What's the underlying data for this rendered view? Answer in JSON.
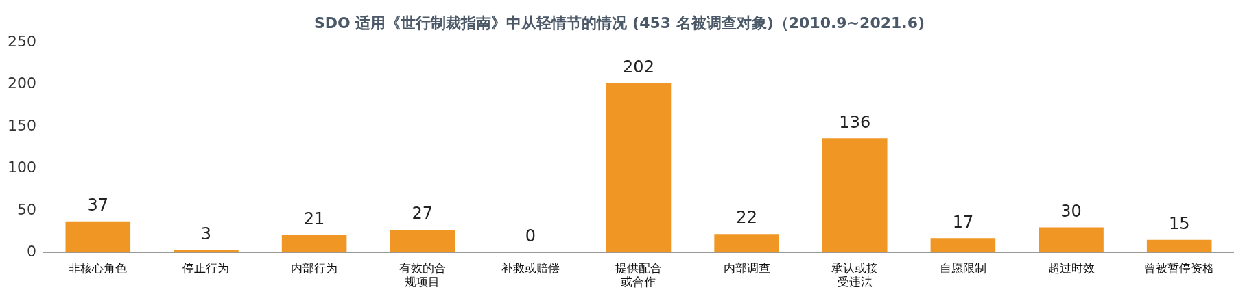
{
  "chart_data": {
    "type": "bar",
    "title": "SDO 适用《世行制裁指南》中从轻情节的情况 (453 名被调查对象)（2010.9~2021.6)",
    "categories": [
      "非核心角色",
      "停止行为",
      "内部行为",
      "有效的合规项目",
      "补救或赔偿",
      "提供配合或合作",
      "内部调查",
      "承认或接受违法",
      "自愿限制",
      "超过时效",
      "曾被暂停资格"
    ],
    "values": [
      37,
      3,
      21,
      27,
      0,
      202,
      22,
      136,
      17,
      30,
      15
    ],
    "color": "#ef9624",
    "ylim": [
      0,
      250
    ],
    "yticks": [
      0,
      50,
      100,
      150,
      200,
      250
    ],
    "grid": false,
    "legend": false,
    "data_labels": true
  }
}
